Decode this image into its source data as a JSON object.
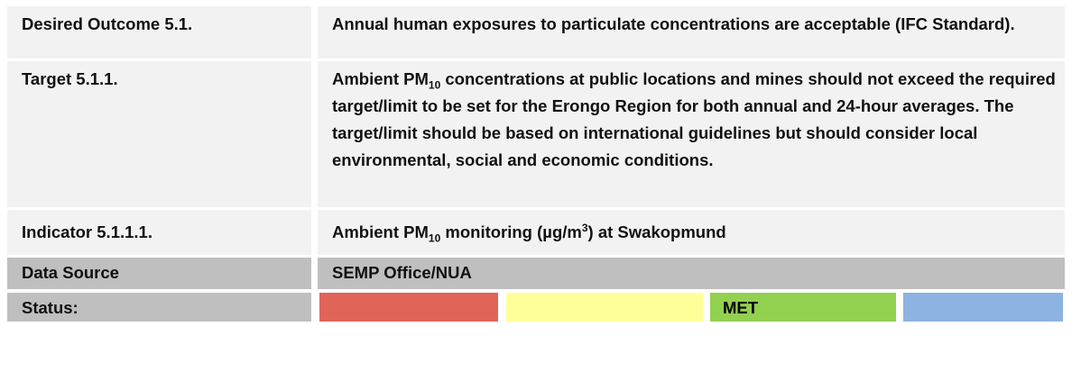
{
  "table": {
    "outcome": {
      "label": "Desired Outcome 5.1.",
      "text": "Annual human exposures to particulate concentrations are acceptable (IFC Standard)."
    },
    "target": {
      "label": "Target 5.1.1.",
      "text": [
        "Ambient PM",
        "10",
        " concentrations at public locations and mines should not exceed the required target/limit to be set for the Erongo Region for both annual and 24-hour averages. The target/limit should be based on international guidelines but should consider local environmental, social and economic conditions."
      ]
    },
    "indicator": {
      "label": "Indicator 5.1.1.1.",
      "text": [
        "Ambient PM",
        "10",
        " monitoring (µg/m",
        "3",
        ") at Swakopmund"
      ]
    },
    "source": {
      "label": "Data Source",
      "text": "SEMP Office/NUA"
    },
    "status": {
      "label": "Status:",
      "cells": [
        {
          "color": "#e06458"
        },
        {
          "color": "#ffff99"
        },
        {
          "color": "#92d050",
          "text": "MET"
        },
        {
          "color": "#8db3e2"
        }
      ]
    }
  }
}
